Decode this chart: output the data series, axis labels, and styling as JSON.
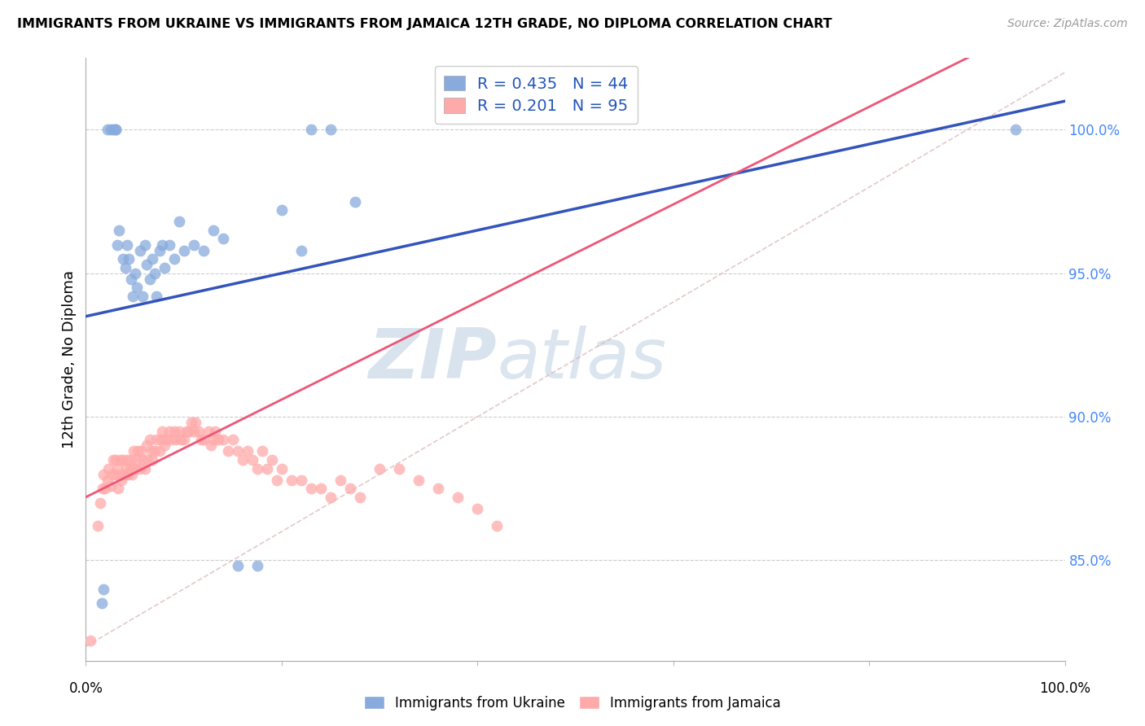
{
  "title": "IMMIGRANTS FROM UKRAINE VS IMMIGRANTS FROM JAMAICA 12TH GRADE, NO DIPLOMA CORRELATION CHART",
  "source": "Source: ZipAtlas.com",
  "ylabel": "12th Grade, No Diploma",
  "ukraine_color": "#88AADD",
  "jamaica_color": "#FFAAAA",
  "ukraine_line_color": "#3355BB",
  "jamaica_line_color": "#EE5577",
  "diagonal_color": "#DDAAAA",
  "ukraine_R": "0.435",
  "ukraine_N": "44",
  "jamaica_R": "0.201",
  "jamaica_N": "95",
  "xlim": [
    0.0,
    1.0
  ],
  "ylim": [
    0.815,
    1.025
  ],
  "y_ticks": [
    0.85,
    0.9,
    0.95,
    1.0
  ],
  "y_tick_labels": [
    "85.0%",
    "90.0%",
    "95.0%",
    "100.0%"
  ],
  "legend_ukraine_label": "Immigrants from Ukraine",
  "legend_jamaica_label": "Immigrants from Jamaica",
  "ukraine_x": [
    0.016,
    0.018,
    0.022,
    0.025,
    0.028,
    0.03,
    0.03,
    0.032,
    0.034,
    0.038,
    0.04,
    0.042,
    0.044,
    0.046,
    0.048,
    0.05,
    0.052,
    0.055,
    0.058,
    0.06,
    0.062,
    0.065,
    0.068,
    0.07,
    0.072,
    0.075,
    0.078,
    0.08,
    0.085,
    0.09,
    0.095,
    0.1,
    0.11,
    0.12,
    0.13,
    0.14,
    0.155,
    0.175,
    0.2,
    0.22,
    0.23,
    0.25,
    0.275,
    0.95
  ],
  "ukraine_y": [
    0.835,
    0.84,
    1.0,
    1.0,
    1.0,
    1.0,
    1.0,
    0.96,
    0.965,
    0.955,
    0.952,
    0.96,
    0.955,
    0.948,
    0.942,
    0.95,
    0.945,
    0.958,
    0.942,
    0.96,
    0.953,
    0.948,
    0.955,
    0.95,
    0.942,
    0.958,
    0.96,
    0.952,
    0.96,
    0.955,
    0.968,
    0.958,
    0.96,
    0.958,
    0.965,
    0.962,
    0.848,
    0.848,
    0.972,
    0.958,
    1.0,
    1.0,
    0.975,
    1.0
  ],
  "jamaica_x": [
    0.005,
    0.012,
    0.015,
    0.017,
    0.018,
    0.02,
    0.022,
    0.023,
    0.025,
    0.027,
    0.028,
    0.03,
    0.03,
    0.032,
    0.033,
    0.035,
    0.036,
    0.037,
    0.038,
    0.04,
    0.041,
    0.042,
    0.043,
    0.045,
    0.046,
    0.047,
    0.048,
    0.049,
    0.05,
    0.052,
    0.053,
    0.055,
    0.056,
    0.058,
    0.06,
    0.062,
    0.063,
    0.065,
    0.067,
    0.068,
    0.07,
    0.072,
    0.075,
    0.077,
    0.078,
    0.08,
    0.082,
    0.085,
    0.087,
    0.09,
    0.092,
    0.095,
    0.097,
    0.1,
    0.103,
    0.105,
    0.108,
    0.11,
    0.112,
    0.115,
    0.118,
    0.12,
    0.125,
    0.128,
    0.13,
    0.132,
    0.135,
    0.14,
    0.145,
    0.15,
    0.155,
    0.16,
    0.165,
    0.17,
    0.175,
    0.18,
    0.185,
    0.19,
    0.195,
    0.2,
    0.21,
    0.22,
    0.23,
    0.24,
    0.25,
    0.26,
    0.27,
    0.28,
    0.3,
    0.32,
    0.34,
    0.36,
    0.38,
    0.4,
    0.42
  ],
  "jamaica_y": [
    0.822,
    0.862,
    0.87,
    0.875,
    0.88,
    0.875,
    0.878,
    0.882,
    0.876,
    0.88,
    0.885,
    0.88,
    0.885,
    0.882,
    0.875,
    0.885,
    0.878,
    0.88,
    0.885,
    0.88,
    0.882,
    0.885,
    0.88,
    0.882,
    0.885,
    0.88,
    0.882,
    0.888,
    0.882,
    0.885,
    0.888,
    0.882,
    0.888,
    0.885,
    0.882,
    0.89,
    0.885,
    0.892,
    0.888,
    0.885,
    0.888,
    0.892,
    0.888,
    0.892,
    0.895,
    0.89,
    0.892,
    0.895,
    0.892,
    0.895,
    0.892,
    0.895,
    0.892,
    0.892,
    0.895,
    0.895,
    0.898,
    0.895,
    0.898,
    0.895,
    0.892,
    0.892,
    0.895,
    0.89,
    0.892,
    0.895,
    0.892,
    0.892,
    0.888,
    0.892,
    0.888,
    0.885,
    0.888,
    0.885,
    0.882,
    0.888,
    0.882,
    0.885,
    0.878,
    0.882,
    0.878,
    0.878,
    0.875,
    0.875,
    0.872,
    0.878,
    0.875,
    0.872,
    0.882,
    0.882,
    0.878,
    0.875,
    0.872,
    0.868,
    0.862
  ]
}
